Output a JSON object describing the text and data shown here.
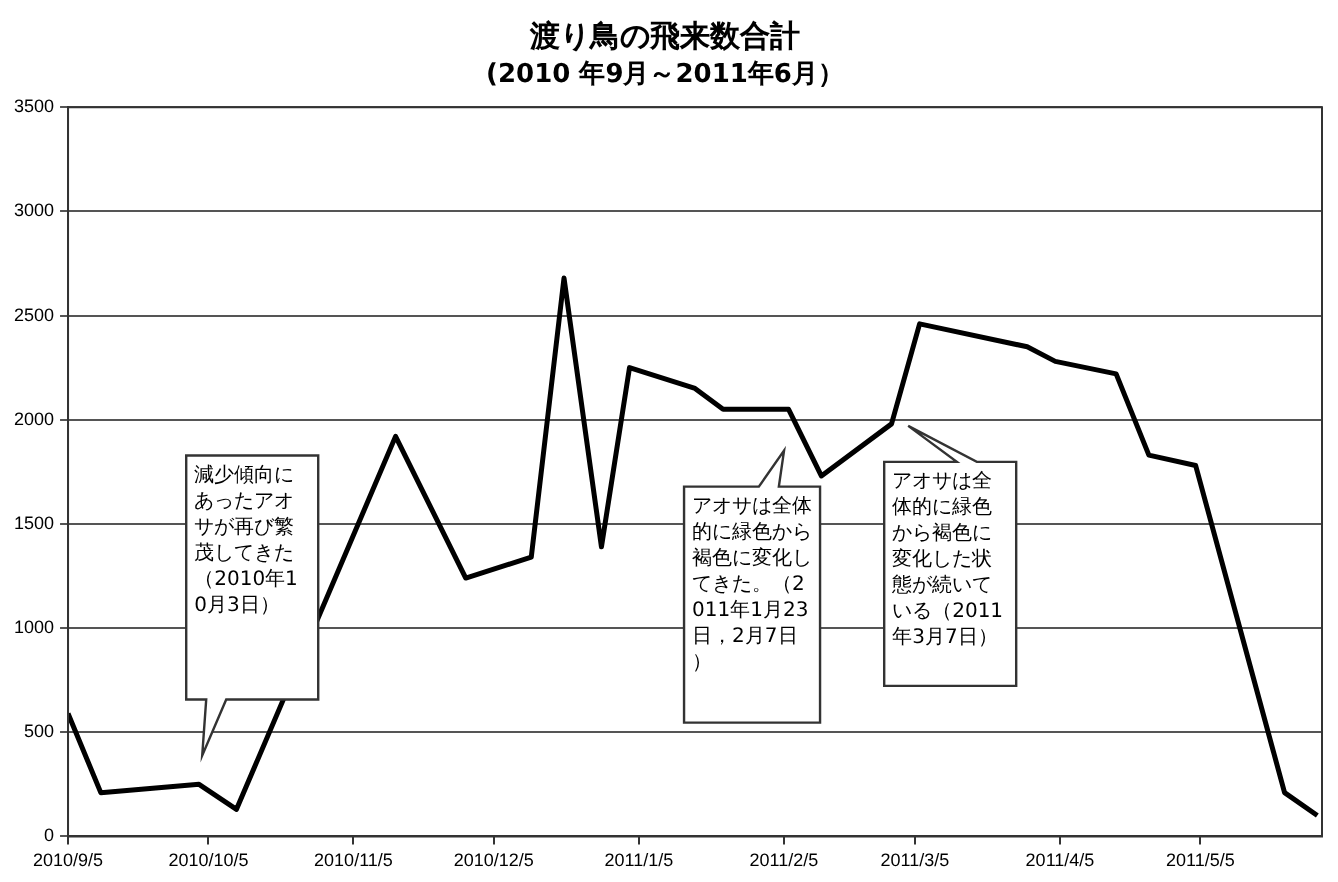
{
  "chart_data": {
    "type": "line",
    "title": "渡り鳥の飛来数合計",
    "subtitle": "(2010 年9月～2011年6月）",
    "x": [
      "2010-09-05",
      "2010-09-12",
      "2010-10-03",
      "2010-10-11",
      "2010-11-14",
      "2010-11-29",
      "2010-12-13",
      "2010-12-20",
      "2010-12-28",
      "2011-01-03",
      "2011-01-17",
      "2011-01-23",
      "2011-02-06",
      "2011-02-13",
      "2011-02-28",
      "2011-03-06",
      "2011-03-29",
      "2011-04-04",
      "2011-04-17",
      "2011-04-24",
      "2011-05-04",
      "2011-05-23",
      "2011-05-30"
    ],
    "series": [
      {
        "color": "#000000",
        "values": [
          590,
          210,
          250,
          130,
          1920,
          1240,
          1340,
          2680,
          1390,
          2250,
          2150,
          2050,
          2050,
          1730,
          1980,
          2460,
          2350,
          2280,
          2220,
          1830,
          1780,
          210,
          100
        ]
      }
    ],
    "xlim": [
      "2010-09-05",
      "2011-05-31"
    ],
    "xticks": [
      {
        "value": "2010-09-05",
        "label": "2010/9/5"
      },
      {
        "value": "2010-10-05",
        "label": "2010/10/5"
      },
      {
        "value": "2010-11-05",
        "label": "2010/11/5"
      },
      {
        "value": "2010-12-05",
        "label": "2010/12/5"
      },
      {
        "value": "2011-01-05",
        "label": "2011/1/5"
      },
      {
        "value": "2011-02-05",
        "label": "2011/2/5"
      },
      {
        "value": "2011-03-05",
        "label": "2011/3/5"
      },
      {
        "value": "2011-04-05",
        "label": "2011/4/5"
      },
      {
        "value": "2011-05-05",
        "label": "2011/5/5"
      }
    ],
    "ylim": [
      0,
      3500
    ],
    "yticks": [
      0,
      500,
      1000,
      1500,
      2000,
      2500,
      3000,
      3500
    ],
    "grid": "y",
    "legend": false,
    "marker": "none",
    "line_style": "solid",
    "annotations": [
      "減少傾向にあったアオサが再び繁茂してきた（2010年10月3日）",
      "アオサは全体的に緑色から褐色に変化してきた。（2011年1月23日，2月7日）",
      "アオサは全体的に緑色から褐色に変化した状態が続いている（2011年3月7日）"
    ]
  }
}
